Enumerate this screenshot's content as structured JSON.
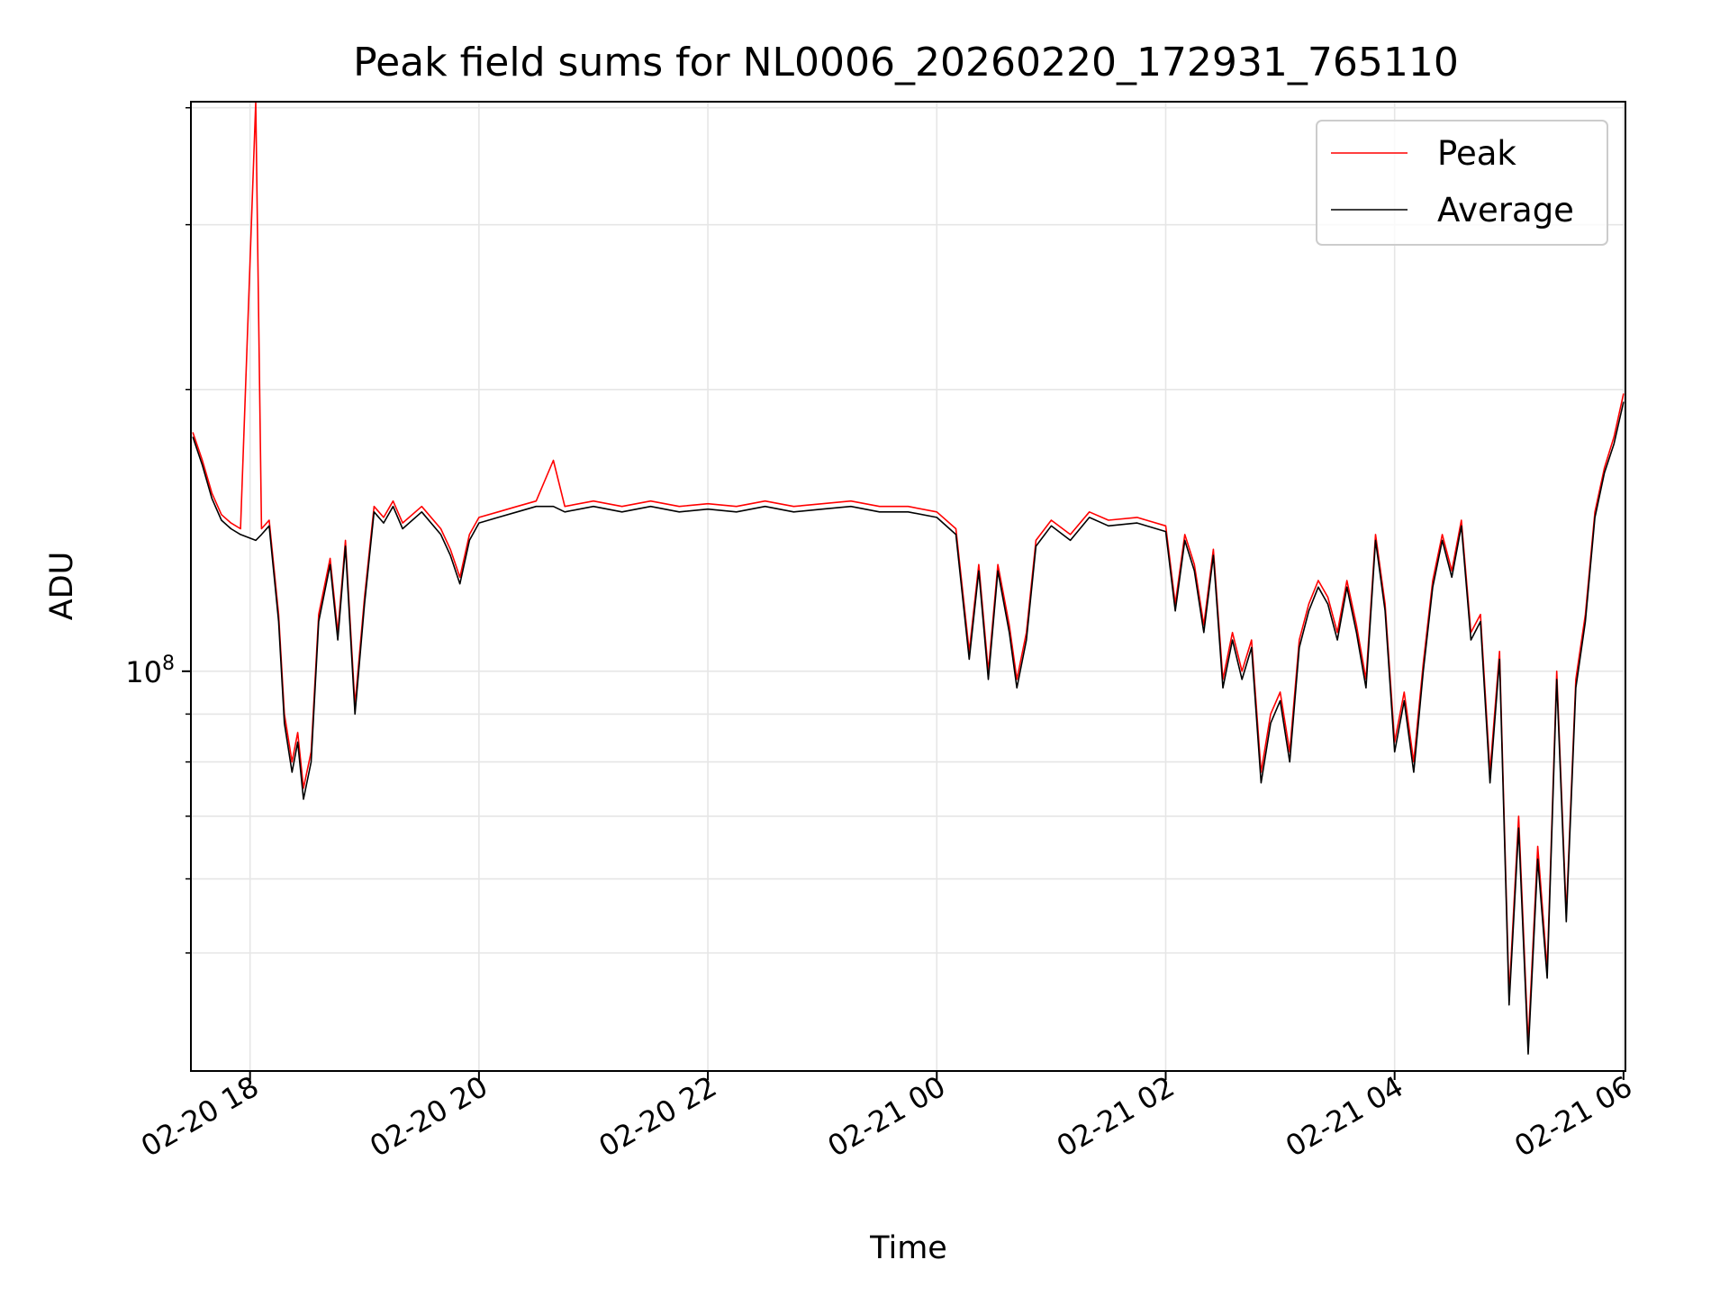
{
  "chart_data": {
    "type": "line",
    "title": "Peak field sums for NL0006_20260220_172931_765110",
    "xlabel": "Time",
    "ylabel": "ADU",
    "y_scale": "log",
    "x_range": [
      "2026-02-20 17:29",
      "2026-02-21 06:01"
    ],
    "ylim": [
      37400000,
      406000000
    ],
    "grid": true,
    "legend_position": "top-right",
    "x_ticks": [
      {
        "value": "2026-02-20 18:00",
        "label": "02-20 18"
      },
      {
        "value": "2026-02-20 20:00",
        "label": "02-20 20"
      },
      {
        "value": "2026-02-20 22:00",
        "label": "02-20 22"
      },
      {
        "value": "2026-02-21 00:00",
        "label": "02-21 00"
      },
      {
        "value": "2026-02-21 02:00",
        "label": "02-21 02"
      },
      {
        "value": "2026-02-21 04:00",
        "label": "02-21 04"
      },
      {
        "value": "2026-02-21 06:00",
        "label": "02-21 06"
      }
    ],
    "y_ticks": [
      {
        "value": 100000000,
        "base": "10",
        "exponent": "8"
      }
    ],
    "y_minor_ticks": [
      50000000,
      60000000,
      70000000,
      80000000,
      90000000,
      200000000,
      300000000,
      400000000
    ],
    "series": [
      {
        "name": "Peak",
        "color": "#ff0000",
        "points": [
          [
            "2026-02-20 17:30",
            180000000
          ],
          [
            "2026-02-20 17:35",
            168000000
          ],
          [
            "2026-02-20 17:40",
            155000000
          ],
          [
            "2026-02-20 17:45",
            147000000
          ],
          [
            "2026-02-20 17:50",
            144000000
          ],
          [
            "2026-02-20 17:55",
            142000000
          ],
          [
            "2026-02-20 18:03",
            406000000
          ],
          [
            "2026-02-20 18:06",
            142000000
          ],
          [
            "2026-02-20 18:10",
            145000000
          ],
          [
            "2026-02-20 18:15",
            115000000
          ],
          [
            "2026-02-20 18:18",
            90000000
          ],
          [
            "2026-02-20 18:22",
            80000000
          ],
          [
            "2026-02-20 18:25",
            86000000
          ],
          [
            "2026-02-20 18:28",
            75000000
          ],
          [
            "2026-02-20 18:32",
            82000000
          ],
          [
            "2026-02-20 18:36",
            115000000
          ],
          [
            "2026-02-20 18:42",
            132000000
          ],
          [
            "2026-02-20 18:46",
            110000000
          ],
          [
            "2026-02-20 18:50",
            138000000
          ],
          [
            "2026-02-20 18:55",
            92000000
          ],
          [
            "2026-02-20 19:00",
            120000000
          ],
          [
            "2026-02-20 19:05",
            150000000
          ],
          [
            "2026-02-20 19:10",
            146000000
          ],
          [
            "2026-02-20 19:15",
            152000000
          ],
          [
            "2026-02-20 19:20",
            144000000
          ],
          [
            "2026-02-20 19:30",
            150000000
          ],
          [
            "2026-02-20 19:40",
            142000000
          ],
          [
            "2026-02-20 19:45",
            135000000
          ],
          [
            "2026-02-20 19:50",
            126000000
          ],
          [
            "2026-02-20 19:55",
            140000000
          ],
          [
            "2026-02-20 20:00",
            146000000
          ],
          [
            "2026-02-20 20:10",
            148000000
          ],
          [
            "2026-02-20 20:20",
            150000000
          ],
          [
            "2026-02-20 20:30",
            152000000
          ],
          [
            "2026-02-20 20:39",
            168000000
          ],
          [
            "2026-02-20 20:45",
            150000000
          ],
          [
            "2026-02-20 21:00",
            152000000
          ],
          [
            "2026-02-20 21:15",
            150000000
          ],
          [
            "2026-02-20 21:30",
            152000000
          ],
          [
            "2026-02-20 21:45",
            150000000
          ],
          [
            "2026-02-20 22:00",
            151000000
          ],
          [
            "2026-02-20 22:15",
            150000000
          ],
          [
            "2026-02-20 22:30",
            152000000
          ],
          [
            "2026-02-20 22:45",
            150000000
          ],
          [
            "2026-02-20 23:00",
            151000000
          ],
          [
            "2026-02-20 23:15",
            152000000
          ],
          [
            "2026-02-20 23:30",
            150000000
          ],
          [
            "2026-02-20 23:45",
            150000000
          ],
          [
            "2026-02-21 00:00",
            148000000
          ],
          [
            "2026-02-21 00:10",
            142000000
          ],
          [
            "2026-02-21 00:17",
            105000000
          ],
          [
            "2026-02-21 00:22",
            130000000
          ],
          [
            "2026-02-21 00:27",
            100000000
          ],
          [
            "2026-02-21 00:32",
            130000000
          ],
          [
            "2026-02-21 00:38",
            112000000
          ],
          [
            "2026-02-21 00:42",
            98000000
          ],
          [
            "2026-02-21 00:47",
            110000000
          ],
          [
            "2026-02-21 00:52",
            138000000
          ],
          [
            "2026-02-21 01:00",
            145000000
          ],
          [
            "2026-02-21 01:10",
            140000000
          ],
          [
            "2026-02-21 01:20",
            148000000
          ],
          [
            "2026-02-21 01:30",
            145000000
          ],
          [
            "2026-02-21 01:45",
            146000000
          ],
          [
            "2026-02-21 02:00",
            143000000
          ],
          [
            "2026-02-21 02:05",
            118000000
          ],
          [
            "2026-02-21 02:10",
            140000000
          ],
          [
            "2026-02-21 02:15",
            130000000
          ],
          [
            "2026-02-21 02:20",
            112000000
          ],
          [
            "2026-02-21 02:25",
            135000000
          ],
          [
            "2026-02-21 02:30",
            98000000
          ],
          [
            "2026-02-21 02:35",
            110000000
          ],
          [
            "2026-02-21 02:40",
            100000000
          ],
          [
            "2026-02-21 02:45",
            108000000
          ],
          [
            "2026-02-21 02:50",
            78000000
          ],
          [
            "2026-02-21 02:55",
            90000000
          ],
          [
            "2026-02-21 03:00",
            95000000
          ],
          [
            "2026-02-21 03:05",
            82000000
          ],
          [
            "2026-02-21 03:10",
            108000000
          ],
          [
            "2026-02-21 03:15",
            118000000
          ],
          [
            "2026-02-21 03:20",
            125000000
          ],
          [
            "2026-02-21 03:25",
            120000000
          ],
          [
            "2026-02-21 03:30",
            110000000
          ],
          [
            "2026-02-21 03:35",
            125000000
          ],
          [
            "2026-02-21 03:40",
            112000000
          ],
          [
            "2026-02-21 03:45",
            98000000
          ],
          [
            "2026-02-21 03:50",
            140000000
          ],
          [
            "2026-02-21 03:55",
            118000000
          ],
          [
            "2026-02-21 04:00",
            84000000
          ],
          [
            "2026-02-21 04:05",
            95000000
          ],
          [
            "2026-02-21 04:10",
            80000000
          ],
          [
            "2026-02-21 04:15",
            102000000
          ],
          [
            "2026-02-21 04:20",
            125000000
          ],
          [
            "2026-02-21 04:25",
            140000000
          ],
          [
            "2026-02-21 04:30",
            128000000
          ],
          [
            "2026-02-21 04:35",
            145000000
          ],
          [
            "2026-02-21 04:40",
            110000000
          ],
          [
            "2026-02-21 04:45",
            115000000
          ],
          [
            "2026-02-21 04:50",
            78000000
          ],
          [
            "2026-02-21 04:55",
            105000000
          ],
          [
            "2026-02-21 05:00",
            45000000
          ],
          [
            "2026-02-21 05:05",
            70000000
          ],
          [
            "2026-02-21 05:10",
            40000000
          ],
          [
            "2026-02-21 05:15",
            65000000
          ],
          [
            "2026-02-21 05:20",
            48000000
          ],
          [
            "2026-02-21 05:25",
            100000000
          ],
          [
            "2026-02-21 05:30",
            55000000
          ],
          [
            "2026-02-21 05:35",
            98000000
          ],
          [
            "2026-02-21 05:40",
            115000000
          ],
          [
            "2026-02-21 05:45",
            148000000
          ],
          [
            "2026-02-21 05:50",
            165000000
          ],
          [
            "2026-02-21 05:55",
            178000000
          ],
          [
            "2026-02-21 06:00",
            198000000
          ]
        ]
      },
      {
        "name": "Average",
        "color": "#000000",
        "points": [
          [
            "2026-02-20 17:30",
            178000000
          ],
          [
            "2026-02-20 17:35",
            166000000
          ],
          [
            "2026-02-20 17:40",
            153000000
          ],
          [
            "2026-02-20 17:45",
            145000000
          ],
          [
            "2026-02-20 17:50",
            142000000
          ],
          [
            "2026-02-20 17:55",
            140000000
          ],
          [
            "2026-02-20 18:03",
            138000000
          ],
          [
            "2026-02-20 18:06",
            140000000
          ],
          [
            "2026-02-20 18:10",
            143000000
          ],
          [
            "2026-02-20 18:15",
            113000000
          ],
          [
            "2026-02-20 18:18",
            88000000
          ],
          [
            "2026-02-20 18:22",
            78000000
          ],
          [
            "2026-02-20 18:25",
            84000000
          ],
          [
            "2026-02-20 18:28",
            73000000
          ],
          [
            "2026-02-20 18:32",
            80000000
          ],
          [
            "2026-02-20 18:36",
            113000000
          ],
          [
            "2026-02-20 18:42",
            130000000
          ],
          [
            "2026-02-20 18:46",
            108000000
          ],
          [
            "2026-02-20 18:50",
            136000000
          ],
          [
            "2026-02-20 18:55",
            90000000
          ],
          [
            "2026-02-20 19:00",
            118000000
          ],
          [
            "2026-02-20 19:05",
            148000000
          ],
          [
            "2026-02-20 19:10",
            144000000
          ],
          [
            "2026-02-20 19:15",
            150000000
          ],
          [
            "2026-02-20 19:20",
            142000000
          ],
          [
            "2026-02-20 19:30",
            148000000
          ],
          [
            "2026-02-20 19:40",
            140000000
          ],
          [
            "2026-02-20 19:45",
            133000000
          ],
          [
            "2026-02-20 19:50",
            124000000
          ],
          [
            "2026-02-20 19:55",
            138000000
          ],
          [
            "2026-02-20 20:00",
            144000000
          ],
          [
            "2026-02-20 20:10",
            146000000
          ],
          [
            "2026-02-20 20:20",
            148000000
          ],
          [
            "2026-02-20 20:30",
            150000000
          ],
          [
            "2026-02-20 20:39",
            150000000
          ],
          [
            "2026-02-20 20:45",
            148000000
          ],
          [
            "2026-02-20 21:00",
            150000000
          ],
          [
            "2026-02-20 21:15",
            148000000
          ],
          [
            "2026-02-20 21:30",
            150000000
          ],
          [
            "2026-02-20 21:45",
            148000000
          ],
          [
            "2026-02-20 22:00",
            149000000
          ],
          [
            "2026-02-20 22:15",
            148000000
          ],
          [
            "2026-02-20 22:30",
            150000000
          ],
          [
            "2026-02-20 22:45",
            148000000
          ],
          [
            "2026-02-20 23:00",
            149000000
          ],
          [
            "2026-02-20 23:15",
            150000000
          ],
          [
            "2026-02-20 23:30",
            148000000
          ],
          [
            "2026-02-20 23:45",
            148000000
          ],
          [
            "2026-02-21 00:00",
            146000000
          ],
          [
            "2026-02-21 00:10",
            140000000
          ],
          [
            "2026-02-21 00:17",
            103000000
          ],
          [
            "2026-02-21 00:22",
            128000000
          ],
          [
            "2026-02-21 00:27",
            98000000
          ],
          [
            "2026-02-21 00:32",
            128000000
          ],
          [
            "2026-02-21 00:38",
            110000000
          ],
          [
            "2026-02-21 00:42",
            96000000
          ],
          [
            "2026-02-21 00:47",
            108000000
          ],
          [
            "2026-02-21 00:52",
            136000000
          ],
          [
            "2026-02-21 01:00",
            143000000
          ],
          [
            "2026-02-21 01:10",
            138000000
          ],
          [
            "2026-02-21 01:20",
            146000000
          ],
          [
            "2026-02-21 01:30",
            143000000
          ],
          [
            "2026-02-21 01:45",
            144000000
          ],
          [
            "2026-02-21 02:00",
            141000000
          ],
          [
            "2026-02-21 02:05",
            116000000
          ],
          [
            "2026-02-21 02:10",
            138000000
          ],
          [
            "2026-02-21 02:15",
            128000000
          ],
          [
            "2026-02-21 02:20",
            110000000
          ],
          [
            "2026-02-21 02:25",
            133000000
          ],
          [
            "2026-02-21 02:30",
            96000000
          ],
          [
            "2026-02-21 02:35",
            108000000
          ],
          [
            "2026-02-21 02:40",
            98000000
          ],
          [
            "2026-02-21 02:45",
            106000000
          ],
          [
            "2026-02-21 02:50",
            76000000
          ],
          [
            "2026-02-21 02:55",
            88000000
          ],
          [
            "2026-02-21 03:00",
            93000000
          ],
          [
            "2026-02-21 03:05",
            80000000
          ],
          [
            "2026-02-21 03:10",
            106000000
          ],
          [
            "2026-02-21 03:15",
            116000000
          ],
          [
            "2026-02-21 03:20",
            123000000
          ],
          [
            "2026-02-21 03:25",
            118000000
          ],
          [
            "2026-02-21 03:30",
            108000000
          ],
          [
            "2026-02-21 03:35",
            123000000
          ],
          [
            "2026-02-21 03:40",
            110000000
          ],
          [
            "2026-02-21 03:45",
            96000000
          ],
          [
            "2026-02-21 03:50",
            138000000
          ],
          [
            "2026-02-21 03:55",
            116000000
          ],
          [
            "2026-02-21 04:00",
            82000000
          ],
          [
            "2026-02-21 04:05",
            93000000
          ],
          [
            "2026-02-21 04:10",
            78000000
          ],
          [
            "2026-02-21 04:15",
            100000000
          ],
          [
            "2026-02-21 04:20",
            123000000
          ],
          [
            "2026-02-21 04:25",
            138000000
          ],
          [
            "2026-02-21 04:30",
            126000000
          ],
          [
            "2026-02-21 04:35",
            143000000
          ],
          [
            "2026-02-21 04:40",
            108000000
          ],
          [
            "2026-02-21 04:45",
            113000000
          ],
          [
            "2026-02-21 04:50",
            76000000
          ],
          [
            "2026-02-21 04:55",
            103000000
          ],
          [
            "2026-02-21 05:00",
            44000000
          ],
          [
            "2026-02-21 05:05",
            68000000
          ],
          [
            "2026-02-21 05:10",
            39000000
          ],
          [
            "2026-02-21 05:15",
            63000000
          ],
          [
            "2026-02-21 05:20",
            47000000
          ],
          [
            "2026-02-21 05:25",
            98000000
          ],
          [
            "2026-02-21 05:30",
            54000000
          ],
          [
            "2026-02-21 05:35",
            96000000
          ],
          [
            "2026-02-21 05:40",
            113000000
          ],
          [
            "2026-02-21 05:45",
            146000000
          ],
          [
            "2026-02-21 05:50",
            163000000
          ],
          [
            "2026-02-21 05:55",
            175000000
          ],
          [
            "2026-02-21 06:00",
            194000000
          ]
        ]
      }
    ]
  }
}
